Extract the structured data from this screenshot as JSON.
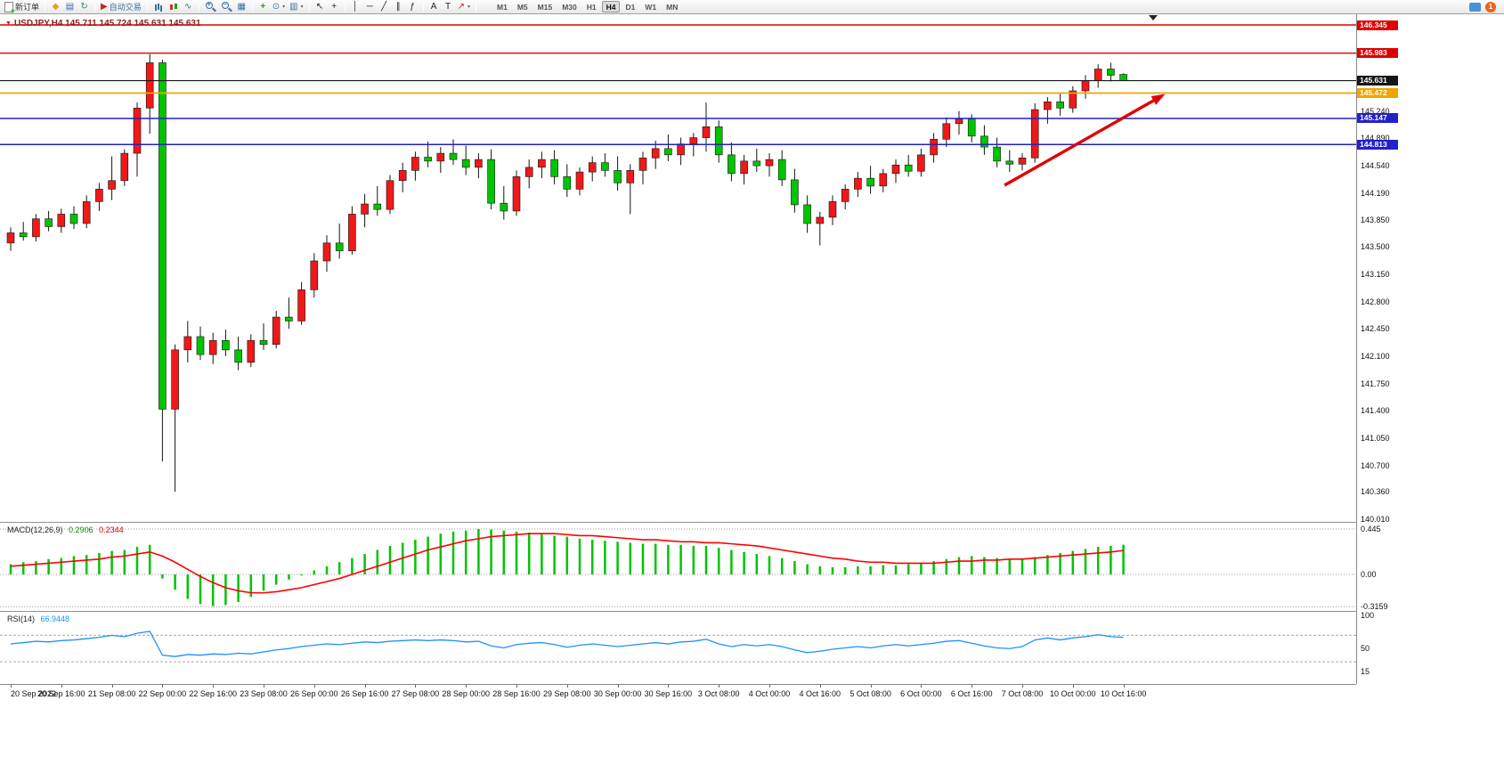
{
  "colors": {
    "bull_candle": "#f01818",
    "bear_candle": "#00c400",
    "wick": "#141414",
    "macd_histogram": "#00c400",
    "macd_signal": "#ff0000",
    "rsi_line": "#1E90FF",
    "trend_arrow": "#e00000",
    "level_red": "#e00000",
    "level_blue": "#2121cc",
    "level_orange": "#efa500",
    "level_black": "#151515"
  },
  "toolbar": {
    "notification_count": "1",
    "items": [
      {
        "name": "new-order-button",
        "icon": "new-order-icon",
        "kind": "newdoc",
        "label": "新订单"
      },
      {
        "kind": "sep"
      },
      {
        "name": "market-watch-button",
        "icon": "market-watch-icon",
        "kind": "glyph",
        "glyph": "◆",
        "color": "#d9a520"
      },
      {
        "name": "data-window-button",
        "icon": "data-window-icon",
        "kind": "glyph",
        "glyph": "▤",
        "color": "#3a6ea5"
      },
      {
        "name": "navigator-button",
        "icon": "navigator-icon",
        "kind": "glyph",
        "glyph": "↻",
        "color": "#2e8b57"
      },
      {
        "kind": "sep"
      },
      {
        "name": "autotrade-button",
        "icon": "autotrade-icon",
        "kind": "glyph",
        "glyph": "▶",
        "color": "#cc2020",
        "label": "自动交易",
        "label_color": "#3a6ea5"
      },
      {
        "kind": "sep"
      },
      {
        "name": "bars-chart-button",
        "icon": "bars-chart-icon",
        "kind": "css",
        "cls": "icon-bars"
      },
      {
        "name": "candles-chart-button",
        "icon": "candlestick-chart-icon",
        "kind": "css",
        "cls": "icon-candle"
      },
      {
        "name": "line-chart-button",
        "icon": "line-chart-icon",
        "kind": "glyph",
        "glyph": "∿",
        "color": "#3a6ea5"
      },
      {
        "kind": "sep"
      },
      {
        "name": "zoom-in-button",
        "icon": "zoom-in-icon",
        "kind": "css",
        "cls": "icon-zoom-in"
      },
      {
        "name": "zoom-out-button",
        "icon": "zoom-out-icon",
        "kind": "css",
        "cls": "icon-zoom-out"
      },
      {
        "name": "tile-windows-button",
        "icon": "tile-windows-icon",
        "kind": "glyph",
        "glyph": "▦",
        "color": "#3a6ea5"
      },
      {
        "kind": "sep"
      },
      {
        "name": "indicators-button",
        "icon": "add-indicator-icon",
        "kind": "glyph",
        "glyph": "+",
        "color": "#18a018",
        "bold": true
      },
      {
        "name": "periods-button",
        "icon": "clock-icon",
        "kind": "glyph",
        "glyph": "⊙",
        "color": "#3a6ea5",
        "dropdown": true
      },
      {
        "name": "templates-button",
        "icon": "template-icon",
        "kind": "glyph",
        "glyph": "▥",
        "color": "#3a6ea5",
        "dropdown": true
      },
      {
        "kind": "sep"
      },
      {
        "name": "cursor-button",
        "icon": "cursor-icon",
        "kind": "glyph",
        "glyph": "↖",
        "color": "#222"
      },
      {
        "name": "crosshair-button",
        "icon": "crosshair-icon",
        "kind": "glyph",
        "glyph": "+",
        "color": "#222"
      },
      {
        "kind": "sep"
      },
      {
        "name": "vertical-line-button",
        "icon": "vertical-line-icon",
        "kind": "glyph",
        "glyph": "│",
        "color": "#222"
      },
      {
        "name": "horizontal-line-button",
        "icon": "horizontal-line-icon",
        "kind": "glyph",
        "glyph": "─",
        "color": "#222"
      },
      {
        "name": "trendline-button",
        "icon": "trendline-icon",
        "kind": "glyph",
        "glyph": "╱",
        "color": "#222"
      },
      {
        "name": "channel-button",
        "icon": "channel-icon",
        "kind": "glyph",
        "glyph": "∥",
        "color": "#222"
      },
      {
        "name": "fibonacci-button",
        "icon": "fibonacci-icon",
        "kind": "glyph",
        "glyph": "ƒ",
        "color": "#222"
      },
      {
        "kind": "sep"
      },
      {
        "name": "text-button",
        "icon": "text-icon",
        "kind": "glyph",
        "glyph": "A",
        "color": "#222"
      },
      {
        "name": "text-label-button",
        "icon": "text-label-icon",
        "kind": "glyph",
        "glyph": "T",
        "color": "#222"
      },
      {
        "name": "arrows-button",
        "icon": "arrow-object-icon",
        "kind": "glyph",
        "glyph": "↗",
        "color": "#cc2020",
        "dropdown": true
      },
      {
        "kind": "sep"
      }
    ],
    "timeframes": [
      {
        "label": "M1"
      },
      {
        "label": "M5"
      },
      {
        "label": "M15"
      },
      {
        "label": "M30"
      },
      {
        "label": "H1"
      },
      {
        "label": "H4",
        "active": true
      },
      {
        "label": "D1"
      },
      {
        "label": "W1"
      },
      {
        "label": "MN"
      }
    ]
  },
  "chart": {
    "title": "USDJPY,H4 145.711 145.724 145.631 145.631",
    "levels": [
      {
        "label": "146.345",
        "price": 146.345,
        "color": "#e00000",
        "width": 1.4
      },
      {
        "label": "145.983",
        "price": 145.983,
        "color": "#e00000",
        "width": 1.4
      },
      {
        "label": "145.631",
        "price": 145.631,
        "color": "#151515",
        "width": 1.1
      },
      {
        "label": "145.472",
        "price": 145.472,
        "color": "#efa500",
        "width": 1.8
      },
      {
        "label": "145.147",
        "price": 145.147,
        "color": "#2121cc",
        "width": 1.5
      },
      {
        "label": "144.813",
        "price": 144.813,
        "color": "#2121cc",
        "width": 1.5
      }
    ],
    "y_ticks": [
      "145.240",
      "144.890",
      "144.540",
      "144.190",
      "143.850",
      "143.500",
      "143.150",
      "142.800",
      "142.450",
      "142.100",
      "141.750",
      "141.400",
      "141.050",
      "140.700",
      "140.360",
      "140.010"
    ],
    "x_labels": [
      "20 Sep 2022",
      "20 Sep 16:00",
      "21 Sep 08:00",
      "22 Sep 00:00",
      "22 Sep 16:00",
      "23 Sep 08:00",
      "26 Sep 00:00",
      "26 Sep 16:00",
      "27 Sep 08:00",
      "28 Sep 00:00",
      "28 Sep 16:00",
      "29 Sep 08:00",
      "30 Sep 00:00",
      "30 Sep 16:00",
      "3 Oct 08:00",
      "4 Oct 00:00",
      "4 Oct 16:00",
      "5 Oct 08:00",
      "6 Oct 00:00",
      "6 Oct 16:00",
      "7 Oct 08:00",
      "10 Oct 00:00",
      "10 Oct 16:00"
    ]
  },
  "indicators": {
    "macd": {
      "label": "MACD(12,26,9)",
      "value_main": "0.2906",
      "value_signal": "0.2344",
      "scale": [
        {
          "label": "0.445",
          "value": 0.445
        },
        {
          "label": "0.00",
          "value": 0
        },
        {
          "label": "-0.3159",
          "value": -0.3159
        }
      ]
    },
    "rsi": {
      "label": "RSI(14)",
      "value": "66.9448",
      "scale": [
        {
          "label": "100",
          "value": 100
        },
        {
          "label": "50",
          "value": 50
        },
        {
          "label": "15",
          "value": 15
        }
      ],
      "dashed_levels": [
        70,
        30
      ]
    }
  },
  "chart_data": {
    "type": "candlestick",
    "symbol": "USDJPY",
    "timeframe": "H4",
    "title": "USDJPY,H4 145.711 145.724 145.631 145.631",
    "price_range": [
      140.01,
      146.482
    ],
    "ohlc": [
      [
        143.55,
        143.75,
        143.45,
        143.68
      ],
      [
        143.68,
        143.82,
        143.58,
        143.63
      ],
      [
        143.63,
        143.92,
        143.57,
        143.86
      ],
      [
        143.86,
        143.96,
        143.7,
        143.76
      ],
      [
        143.76,
        143.99,
        143.68,
        143.92
      ],
      [
        143.92,
        144.02,
        143.73,
        143.8
      ],
      [
        143.8,
        144.16,
        143.74,
        144.08
      ],
      [
        144.08,
        144.32,
        143.96,
        144.24
      ],
      [
        144.24,
        144.66,
        144.1,
        144.35
      ],
      [
        144.35,
        144.75,
        144.28,
        144.7
      ],
      [
        144.7,
        145.35,
        144.4,
        145.28
      ],
      [
        145.28,
        145.97,
        144.95,
        145.86
      ],
      [
        145.86,
        145.9,
        140.75,
        141.42
      ],
      [
        141.42,
        142.25,
        140.36,
        142.18
      ],
      [
        142.18,
        142.55,
        142.02,
        142.35
      ],
      [
        142.35,
        142.48,
        142.05,
        142.12
      ],
      [
        142.12,
        142.4,
        142.0,
        142.3
      ],
      [
        142.3,
        142.44,
        142.1,
        142.18
      ],
      [
        142.18,
        142.35,
        141.92,
        142.02
      ],
      [
        142.02,
        142.38,
        141.96,
        142.3
      ],
      [
        142.3,
        142.52,
        142.18,
        142.25
      ],
      [
        142.25,
        142.68,
        142.2,
        142.6
      ],
      [
        142.6,
        142.85,
        142.45,
        142.55
      ],
      [
        142.55,
        143.05,
        142.5,
        142.95
      ],
      [
        142.95,
        143.42,
        142.85,
        143.32
      ],
      [
        143.32,
        143.65,
        143.18,
        143.55
      ],
      [
        143.55,
        143.8,
        143.35,
        143.45
      ],
      [
        143.45,
        144.02,
        143.4,
        143.92
      ],
      [
        143.92,
        144.18,
        143.75,
        144.05
      ],
      [
        144.05,
        144.28,
        143.9,
        143.98
      ],
      [
        143.98,
        144.42,
        143.92,
        144.35
      ],
      [
        144.35,
        144.58,
        144.2,
        144.48
      ],
      [
        144.48,
        144.72,
        144.35,
        144.65
      ],
      [
        144.65,
        144.85,
        144.52,
        144.6
      ],
      [
        144.6,
        144.78,
        144.45,
        144.7
      ],
      [
        144.7,
        144.88,
        144.55,
        144.62
      ],
      [
        144.62,
        144.8,
        144.42,
        144.52
      ],
      [
        144.52,
        144.7,
        144.38,
        144.62
      ],
      [
        144.62,
        144.75,
        143.98,
        144.06
      ],
      [
        144.06,
        144.28,
        143.85,
        143.96
      ],
      [
        143.96,
        144.48,
        143.9,
        144.4
      ],
      [
        144.4,
        144.62,
        144.25,
        144.52
      ],
      [
        144.52,
        144.72,
        144.38,
        144.62
      ],
      [
        144.62,
        144.74,
        144.3,
        144.4
      ],
      [
        144.4,
        144.56,
        144.14,
        144.24
      ],
      [
        144.24,
        144.52,
        144.16,
        144.46
      ],
      [
        144.46,
        144.66,
        144.34,
        144.58
      ],
      [
        144.58,
        144.7,
        144.4,
        144.48
      ],
      [
        144.48,
        144.66,
        144.22,
        144.32
      ],
      [
        144.32,
        144.56,
        143.92,
        144.48
      ],
      [
        144.48,
        144.72,
        144.3,
        144.64
      ],
      [
        144.64,
        144.86,
        144.5,
        144.76
      ],
      [
        144.76,
        144.94,
        144.6,
        144.68
      ],
      [
        144.68,
        144.9,
        144.55,
        144.82
      ],
      [
        144.82,
        144.96,
        144.66,
        144.9
      ],
      [
        144.9,
        145.35,
        144.72,
        145.04
      ],
      [
        145.04,
        145.12,
        144.58,
        144.68
      ],
      [
        144.68,
        144.84,
        144.34,
        144.44
      ],
      [
        144.44,
        144.68,
        144.3,
        144.6
      ],
      [
        144.6,
        144.76,
        144.46,
        144.54
      ],
      [
        144.54,
        144.7,
        144.4,
        144.62
      ],
      [
        144.62,
        144.74,
        144.28,
        144.36
      ],
      [
        144.36,
        144.5,
        143.94,
        144.04
      ],
      [
        144.04,
        144.16,
        143.68,
        143.8
      ],
      [
        143.8,
        143.95,
        143.52,
        143.88
      ],
      [
        143.88,
        144.16,
        143.78,
        144.08
      ],
      [
        144.08,
        144.3,
        143.98,
        144.24
      ],
      [
        144.24,
        144.46,
        144.14,
        144.38
      ],
      [
        144.38,
        144.54,
        144.18,
        144.28
      ],
      [
        144.28,
        144.5,
        144.2,
        144.44
      ],
      [
        144.44,
        144.62,
        144.32,
        144.55
      ],
      [
        144.55,
        144.68,
        144.4,
        144.47
      ],
      [
        144.47,
        144.76,
        144.4,
        144.68
      ],
      [
        144.68,
        144.96,
        144.58,
        144.88
      ],
      [
        144.88,
        145.16,
        144.78,
        145.08
      ],
      [
        145.08,
        145.24,
        144.94,
        145.14
      ],
      [
        145.14,
        145.2,
        144.84,
        144.92
      ],
      [
        144.92,
        145.06,
        144.68,
        144.78
      ],
      [
        144.78,
        144.9,
        144.52,
        144.6
      ],
      [
        144.6,
        144.74,
        144.46,
        144.56
      ],
      [
        144.56,
        144.7,
        144.48,
        144.64
      ],
      [
        144.64,
        145.34,
        144.58,
        145.26
      ],
      [
        145.26,
        145.42,
        145.08,
        145.36
      ],
      [
        145.36,
        145.46,
        145.18,
        145.28
      ],
      [
        145.28,
        145.56,
        145.22,
        145.5
      ],
      [
        145.5,
        145.7,
        145.4,
        145.63
      ],
      [
        145.63,
        145.84,
        145.54,
        145.78
      ],
      [
        145.78,
        145.86,
        145.62,
        145.7
      ],
      [
        145.711,
        145.724,
        145.631,
        145.631
      ]
    ],
    "macd_range": [
      -0.3159,
      0.445
    ],
    "macd_histogram": [
      0.1,
      0.12,
      0.13,
      0.15,
      0.16,
      0.18,
      0.19,
      0.21,
      0.23,
      0.24,
      0.27,
      0.29,
      -0.04,
      -0.15,
      -0.24,
      -0.29,
      -0.31,
      -0.3,
      -0.27,
      -0.22,
      -0.16,
      -0.1,
      -0.05,
      -0.01,
      0.04,
      0.08,
      0.12,
      0.16,
      0.2,
      0.24,
      0.28,
      0.31,
      0.34,
      0.37,
      0.4,
      0.42,
      0.43,
      0.445,
      0.44,
      0.43,
      0.42,
      0.41,
      0.4,
      0.38,
      0.37,
      0.35,
      0.34,
      0.33,
      0.32,
      0.31,
      0.3,
      0.3,
      0.29,
      0.29,
      0.28,
      0.28,
      0.26,
      0.24,
      0.22,
      0.2,
      0.18,
      0.16,
      0.13,
      0.1,
      0.08,
      0.07,
      0.07,
      0.08,
      0.08,
      0.09,
      0.09,
      0.1,
      0.11,
      0.13,
      0.15,
      0.17,
      0.18,
      0.17,
      0.16,
      0.15,
      0.15,
      0.17,
      0.19,
      0.21,
      0.23,
      0.25,
      0.27,
      0.28,
      0.2906
    ],
    "macd_signal": [
      0.08,
      0.09,
      0.1,
      0.11,
      0.12,
      0.13,
      0.14,
      0.15,
      0.17,
      0.18,
      0.2,
      0.22,
      0.18,
      0.12,
      0.05,
      -0.02,
      -0.08,
      -0.13,
      -0.16,
      -0.18,
      -0.18,
      -0.17,
      -0.15,
      -0.13,
      -0.1,
      -0.07,
      -0.04,
      0.0,
      0.04,
      0.08,
      0.12,
      0.16,
      0.2,
      0.24,
      0.27,
      0.3,
      0.33,
      0.35,
      0.37,
      0.38,
      0.39,
      0.4,
      0.4,
      0.4,
      0.39,
      0.38,
      0.38,
      0.37,
      0.36,
      0.35,
      0.34,
      0.34,
      0.33,
      0.32,
      0.32,
      0.31,
      0.31,
      0.3,
      0.29,
      0.28,
      0.26,
      0.24,
      0.22,
      0.2,
      0.18,
      0.16,
      0.15,
      0.13,
      0.12,
      0.12,
      0.11,
      0.11,
      0.11,
      0.11,
      0.12,
      0.13,
      0.13,
      0.14,
      0.14,
      0.15,
      0.15,
      0.16,
      0.17,
      0.18,
      0.19,
      0.2,
      0.21,
      0.22,
      0.2344
    ],
    "rsi_range": [
      0,
      100
    ],
    "rsi_values": [
      57,
      59,
      61,
      60,
      62,
      63,
      65,
      67,
      70,
      68,
      73,
      76,
      40,
      38,
      41,
      40,
      42,
      41,
      43,
      42,
      45,
      48,
      50,
      53,
      55,
      57,
      56,
      58,
      60,
      59,
      61,
      62,
      63,
      62,
      63,
      62,
      60,
      61,
      54,
      51,
      56,
      58,
      59,
      56,
      52,
      55,
      57,
      55,
      53,
      55,
      57,
      59,
      57,
      60,
      61,
      64,
      57,
      53,
      56,
      54,
      56,
      53,
      48,
      44,
      46,
      49,
      51,
      53,
      51,
      54,
      56,
      54,
      56,
      58,
      61,
      62,
      58,
      54,
      51,
      50,
      53,
      63,
      66,
      63,
      66,
      68,
      71,
      68,
      66.9448
    ],
    "trend_arrow": {
      "from_bar": 78.6,
      "from_price": 144.29,
      "to_bar": 91.3,
      "to_price": 145.46
    }
  }
}
